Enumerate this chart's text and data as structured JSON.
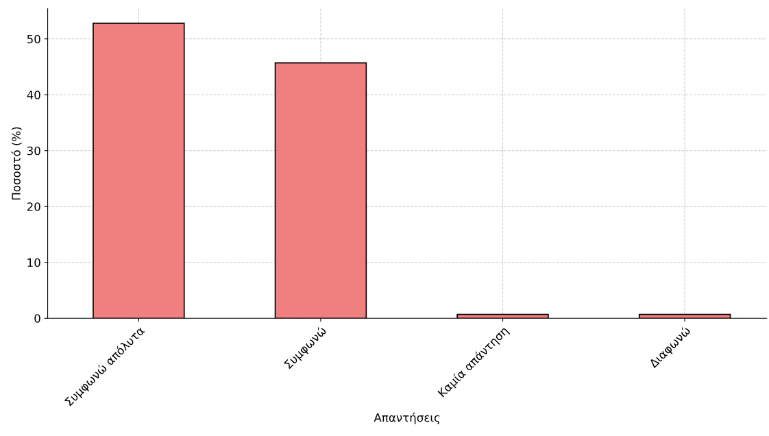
{
  "chart_data": {
    "type": "bar",
    "xlabel": "Απαντήσεις",
    "ylabel": "Ποσοστό (%)",
    "categories": [
      "Συμφωνώ απόλυτα",
      "Συμφωνώ",
      "Καμία απάντηση",
      "Διαφωνώ"
    ],
    "values": [
      52.8,
      45.7,
      0.7,
      0.7
    ],
    "color": "#f08080",
    "ylim": [
      0,
      55.4
    ],
    "yticks": [
      0,
      10,
      20,
      30,
      40,
      50
    ],
    "grid": true
  }
}
